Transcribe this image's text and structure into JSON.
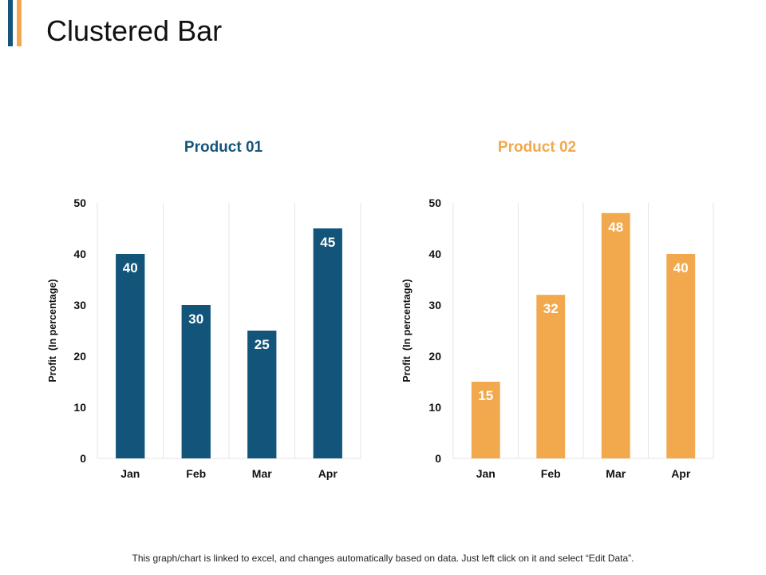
{
  "page": {
    "title": "Clustered Bar",
    "footer": "This graph/chart is linked to excel, and changes automatically based on data. Just left click on it and select “Edit Data”."
  },
  "colors": {
    "accent_dark": "#13557a",
    "accent_light": "#f2a94e"
  },
  "chart_data": [
    {
      "type": "bar",
      "title": "Product 01",
      "color": "#13557a",
      "categories": [
        "Jan",
        "Feb",
        "Mar",
        "Apr"
      ],
      "values": [
        40,
        30,
        25,
        45
      ],
      "xlabel": "",
      "ylabel": "Profit  (In percentage)",
      "ylim": [
        0,
        50
      ],
      "yticks": [
        0,
        10,
        20,
        30,
        40,
        50
      ],
      "grid": "vertical"
    },
    {
      "type": "bar",
      "title": "Product 02",
      "color": "#f2a94e",
      "categories": [
        "Jan",
        "Feb",
        "Mar",
        "Apr"
      ],
      "values": [
        15,
        32,
        48,
        40
      ],
      "xlabel": "",
      "ylabel": "Profit  (In percentage)",
      "ylim": [
        0,
        50
      ],
      "yticks": [
        0,
        10,
        20,
        30,
        40,
        50
      ],
      "grid": "vertical"
    }
  ]
}
